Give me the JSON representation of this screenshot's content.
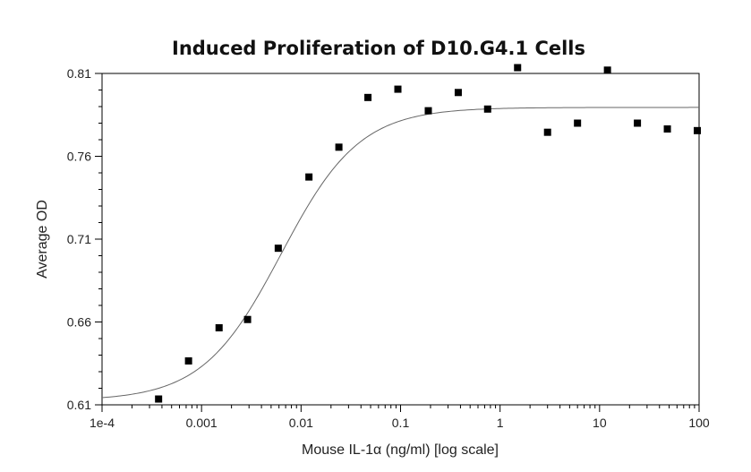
{
  "chart_data": {
    "type": "scatter",
    "title": "Induced Proliferation of D10.G4.1 Cells",
    "xlabel": "Mouse IL-1α (ng/ml) [log scale]",
    "ylabel": "Average OD",
    "x_scale": "log",
    "xlim": [
      0.0001,
      100
    ],
    "ylim": [
      0.61,
      0.81
    ],
    "x_ticks": [
      0.0001,
      0.001,
      0.01,
      0.1,
      1,
      10,
      100
    ],
    "x_tick_labels": [
      "1e-4",
      "0.001",
      "0.01",
      "0.1",
      "1",
      "10",
      "100"
    ],
    "y_ticks": [
      0.61,
      0.66,
      0.71,
      0.76,
      0.81
    ],
    "y_tick_labels": [
      "0.61",
      "0.66",
      "0.71",
      "0.76",
      "0.81"
    ],
    "grid": false,
    "legend": "none",
    "series": [
      {
        "type": "scatter",
        "marker": "square",
        "color": "#000000",
        "x": [
          0.00037,
          0.00074,
          0.0015,
          0.0029,
          0.0059,
          0.012,
          0.024,
          0.047,
          0.094,
          0.19,
          0.38,
          0.75,
          1.5,
          3.0,
          6.0,
          12.0,
          24.0,
          48.0,
          96.0
        ],
        "y": [
          0.6135,
          0.6365,
          0.6565,
          0.6615,
          0.7045,
          0.7475,
          0.7655,
          0.7955,
          0.8005,
          0.7875,
          0.7985,
          0.7885,
          0.8135,
          0.7745,
          0.78,
          0.812,
          0.78,
          0.7765,
          0.7755
        ]
      },
      {
        "type": "line",
        "color": "#666666",
        "style": "fitted-curve",
        "curve": {
          "model": "4PL",
          "bottom": 0.6125,
          "top": 0.7895,
          "ec50": 0.0063,
          "hill": 1.1,
          "x_range": [
            0.0001,
            100
          ]
        }
      }
    ]
  }
}
